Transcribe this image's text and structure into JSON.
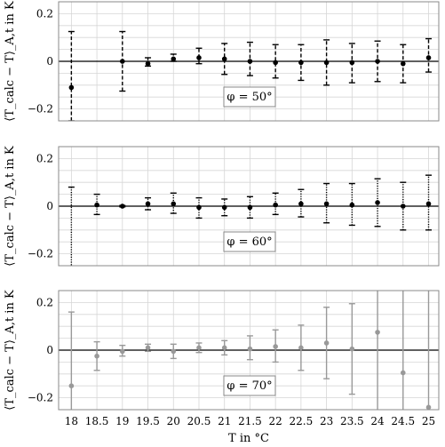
{
  "chart_data": [
    {
      "type": "scatter",
      "style": "errorbar",
      "annotation": "φ = 50°",
      "ylabel": "⟨T_calc − T⟩_A,t in K",
      "xlabel": "",
      "xlim": [
        17.75,
        25.2
      ],
      "ylim": [
        -0.25,
        0.25
      ],
      "yticks": [
        -0.2,
        0,
        0.2
      ],
      "grid": true,
      "errorbar_style": "dashed",
      "color": "#000000",
      "x": [
        18,
        19,
        19.5,
        20,
        20.5,
        21,
        21.5,
        22,
        22.5,
        23,
        23.5,
        24,
        24.5,
        25
      ],
      "y": [
        -0.11,
        0.0,
        -0.01,
        0.01,
        0.015,
        0.01,
        0.0,
        -0.005,
        -0.005,
        -0.005,
        -0.005,
        0.0,
        -0.01,
        0.015
      ],
      "err_low": [
        0.14,
        0.125,
        0.01,
        0.01,
        0.025,
        0.065,
        0.06,
        0.065,
        0.075,
        0.095,
        0.085,
        0.085,
        0.08,
        0.06
      ],
      "err_high": [
        0.235,
        0.125,
        0.025,
        0.02,
        0.04,
        0.065,
        0.08,
        0.075,
        0.075,
        0.095,
        0.08,
        0.085,
        0.08,
        0.08
      ]
    },
    {
      "type": "scatter",
      "style": "errorbar",
      "annotation": "φ = 60°",
      "ylabel": "⟨T_calc − T⟩_A,t in K",
      "xlabel": "",
      "xlim": [
        17.75,
        25.2
      ],
      "ylim": [
        -0.25,
        0.25
      ],
      "yticks": [
        -0.2,
        0,
        0.2
      ],
      "grid": true,
      "errorbar_style": "dotted",
      "color": "#000000",
      "x": [
        18,
        18.5,
        19,
        19.5,
        20,
        20.5,
        21,
        21.5,
        22,
        22.5,
        23,
        23.5,
        24,
        24.5,
        25
      ],
      "y": [
        null,
        0.005,
        0.0,
        0.01,
        0.01,
        -0.005,
        -0.005,
        -0.005,
        0.005,
        0.01,
        0.01,
        0.005,
        0.015,
        0.0,
        0.01
      ],
      "err_low": [
        0.3,
        0.04,
        0.003,
        0.025,
        0.04,
        0.045,
        0.035,
        0.045,
        0.04,
        0.055,
        0.08,
        0.085,
        0.1,
        0.1,
        0.11
      ],
      "err_high": [
        0.08,
        0.045,
        0.003,
        0.025,
        0.045,
        0.04,
        0.035,
        0.045,
        0.05,
        0.06,
        0.085,
        0.09,
        0.1,
        0.1,
        0.12
      ]
    },
    {
      "type": "scatter",
      "style": "errorbar",
      "annotation": "φ = 70°",
      "ylabel": "⟨T_calc − T⟩_A,t in K",
      "xlabel": "T in °C",
      "xlim": [
        17.75,
        25.2
      ],
      "ylim": [
        -0.25,
        0.25
      ],
      "yticks": [
        -0.2,
        0,
        0.2
      ],
      "xticks": [
        18,
        18.5,
        19,
        19.5,
        20,
        20.5,
        21,
        21.5,
        22,
        22.5,
        23,
        23.5,
        24,
        24.5,
        25
      ],
      "xticklabels": [
        "18",
        "18.5",
        "19",
        "19.5",
        "20",
        "20.5",
        "21",
        "21.5",
        "22",
        "22.5",
        "23",
        "23.5",
        "24",
        "24.5",
        "25"
      ],
      "grid": true,
      "errorbar_style": "solid",
      "color": "#999999",
      "x": [
        18,
        18.5,
        19,
        19.5,
        20,
        20.5,
        21,
        21.5,
        22,
        22.5,
        23,
        23.5,
        24,
        24.5,
        25
      ],
      "y": [
        -0.15,
        -0.025,
        -0.005,
        0.01,
        -0.005,
        0.01,
        0.01,
        0.005,
        0.015,
        0.01,
        0.03,
        0.005,
        0.075,
        -0.095,
        -0.24
      ],
      "err_low": [
        0.12,
        0.06,
        0.02,
        0.015,
        0.03,
        0.02,
        0.03,
        0.045,
        0.065,
        0.095,
        0.15,
        0.19,
        0.34,
        0.16,
        0.03
      ],
      "err_high": [
        0.31,
        0.06,
        0.025,
        0.015,
        0.03,
        0.02,
        0.03,
        0.055,
        0.07,
        0.095,
        0.15,
        0.19,
        0.2,
        0.37,
        0.5
      ]
    }
  ]
}
